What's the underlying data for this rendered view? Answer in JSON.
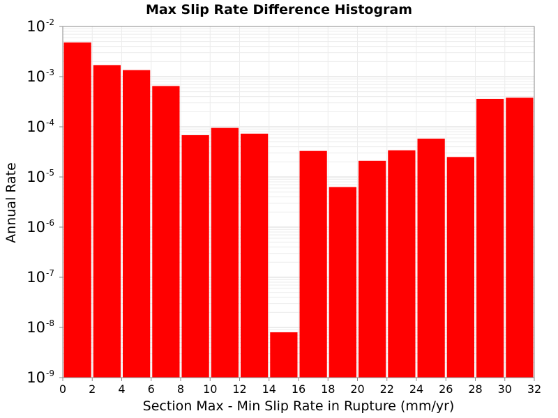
{
  "chart_data": {
    "type": "bar",
    "title": "Max Slip Rate Difference Histogram",
    "xlabel": "Section Max - Min Slip Rate in Rupture (mm/yr)",
    "ylabel": "Annual Rate",
    "xlim": [
      0,
      32
    ],
    "ylim": [
      1e-09,
      0.01
    ],
    "yscale": "log",
    "bin_width": 2,
    "bar_color": "#ff0000",
    "grid": true,
    "x_ticks": [
      "0",
      "2",
      "4",
      "6",
      "8",
      "10",
      "12",
      "14",
      "16",
      "18",
      "20",
      "22",
      "24",
      "26",
      "28",
      "30",
      "32"
    ],
    "y_ticks": [
      {
        "value": 0.01,
        "base": "10",
        "exp": "-2"
      },
      {
        "value": 0.001,
        "base": "10",
        "exp": "-3"
      },
      {
        "value": 0.0001,
        "base": "10",
        "exp": "-4"
      },
      {
        "value": 1e-05,
        "base": "10",
        "exp": "-5"
      },
      {
        "value": 1e-06,
        "base": "10",
        "exp": "-6"
      },
      {
        "value": 1e-07,
        "base": "10",
        "exp": "-7"
      },
      {
        "value": 1e-08,
        "base": "10",
        "exp": "-8"
      },
      {
        "value": 1e-09,
        "base": "10",
        "exp": "-9"
      }
    ],
    "bins_start": [
      0,
      2,
      4,
      6,
      8,
      10,
      12,
      14,
      16,
      18,
      20,
      22,
      24,
      26,
      28,
      30
    ],
    "values": [
      0.0048,
      0.0017,
      0.00135,
      0.00065,
      6.8e-05,
      9.5e-05,
      7.3e-05,
      8e-09,
      3.3e-05,
      6.3e-06,
      2.1e-05,
      3.4e-05,
      5.8e-05,
      2.5e-05,
      0.00036,
      0.00038
    ]
  }
}
